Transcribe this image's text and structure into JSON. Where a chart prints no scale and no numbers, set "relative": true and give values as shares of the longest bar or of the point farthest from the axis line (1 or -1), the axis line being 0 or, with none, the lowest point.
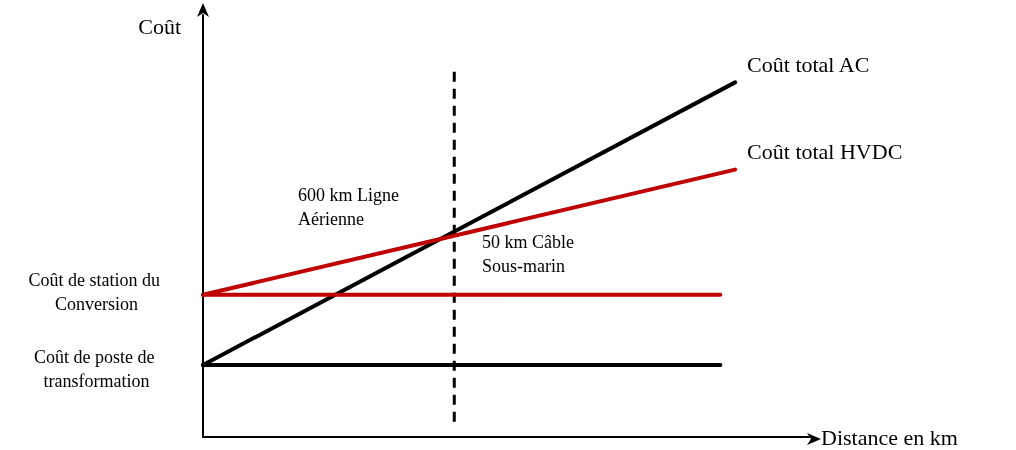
{
  "chart_data": {
    "type": "line",
    "relative": true,
    "xlabel": "Distance en km",
    "ylabel": "Coût",
    "categories": [
      null,
      null,
      null,
      null,
      null,
      null,
      null,
      null,
      null,
      null,
      null,
      null,
      null,
      null,
      null,
      null,
      null,
      null,
      null,
      null,
      null,
      null,
      null,
      null,
      null,
      null,
      null,
      null,
      null,
      null,
      null,
      null,
      null,
      null,
      null,
      null,
      null,
      null,
      null,
      null,
      null,
      null
    ],
    "series": [
      {
        "name": "Coût total AC",
        "color": "#000000",
        "values": [
          0.203,
          null,
          null,
          null,
          null,
          null,
          null,
          null,
          null,
          null,
          null,
          null,
          null,
          null,
          null,
          null,
          null,
          null,
          null,
          null,
          null,
          null,
          null,
          null,
          null,
          null,
          null,
          null,
          null,
          null,
          null,
          null,
          null,
          null,
          null,
          null,
          1,
          null,
          null,
          null,
          null,
          null
        ]
      },
      {
        "name": "Coût total HVDC",
        "color": "#c00000",
        "values": [
          0.401,
          null,
          null,
          null,
          null,
          null,
          null,
          null,
          null,
          null,
          null,
          null,
          null,
          null,
          null,
          null,
          null,
          null,
          null,
          null,
          null,
          null,
          null,
          null,
          null,
          null,
          null,
          null,
          null,
          null,
          null,
          null,
          null,
          null,
          null,
          null,
          0.754,
          null,
          null,
          null,
          null,
          null
        ]
      },
      {
        "color": "#c00000",
        "values": [
          0.401,
          null,
          null,
          null,
          null,
          null,
          null,
          null,
          null,
          null,
          null,
          null,
          null,
          null,
          null,
          null,
          null,
          null,
          null,
          null,
          null,
          null,
          null,
          null,
          null,
          null,
          null,
          null,
          null,
          null,
          null,
          null,
          null,
          null,
          null,
          0.401,
          null,
          null,
          null,
          null,
          null,
          null
        ]
      },
      {
        "color": "#000000",
        "values": [
          0.203,
          null,
          null,
          null,
          null,
          null,
          null,
          null,
          null,
          null,
          null,
          null,
          null,
          null,
          null,
          null,
          null,
          null,
          null,
          null,
          null,
          null,
          null,
          null,
          null,
          null,
          null,
          null,
          null,
          null,
          null,
          null,
          null,
          null,
          null,
          0.203,
          null,
          null,
          null,
          null,
          null,
          null
        ]
      }
    ],
    "annotations": [
      "Coût de station du Conversion",
      "Coût de poste de transformation",
      "600 km Ligne Aérienne",
      "50 km Câble Sous-marin"
    ],
    "marker": "none",
    "legend": false,
    "grid": false
  }
}
